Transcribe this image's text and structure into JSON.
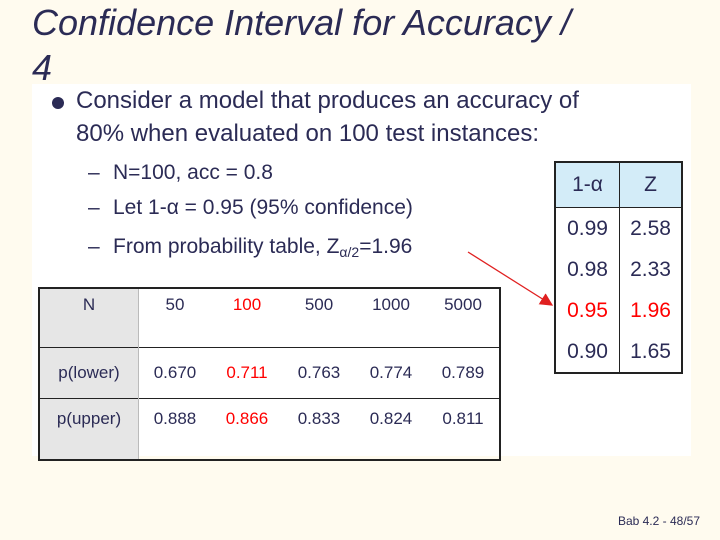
{
  "slide": {
    "title_line1": "Confidence Interval for Accuracy /",
    "title_line2": "4",
    "bullet": {
      "line1": "Consider a model that produces an accuracy of",
      "line2": "80% when evaluated on 100 test instances:"
    },
    "subpoints": {
      "dash": "–",
      "item1": "N=100, acc = 0.8",
      "item2": "Let 1-α = 0.95 (95% confidence)",
      "item3_prefix": "From probability table, Z",
      "item3_sub": "α/2",
      "item3_suffix": "=1.96"
    },
    "n_table": {
      "row_labels": [
        "N",
        "p(lower)",
        "p(upper)"
      ],
      "n_values": [
        "50",
        "100",
        "500",
        "1000",
        "5000"
      ],
      "p_lower": [
        "0.670",
        "0.711",
        "0.763",
        "0.774",
        "0.789"
      ],
      "p_upper": [
        "0.888",
        "0.866",
        "0.833",
        "0.824",
        "0.811"
      ],
      "highlight_color": "#ff0000"
    },
    "z_table": {
      "header": [
        "1-α",
        "Z"
      ],
      "rows": [
        [
          "0.99",
          "2.58"
        ],
        [
          "0.98",
          "2.33"
        ],
        [
          "0.95",
          "1.96"
        ],
        [
          "0.90",
          "1.65"
        ]
      ],
      "header_color": "#d3ecf8"
    },
    "footer": "Bab 4.2 - 48/57"
  }
}
